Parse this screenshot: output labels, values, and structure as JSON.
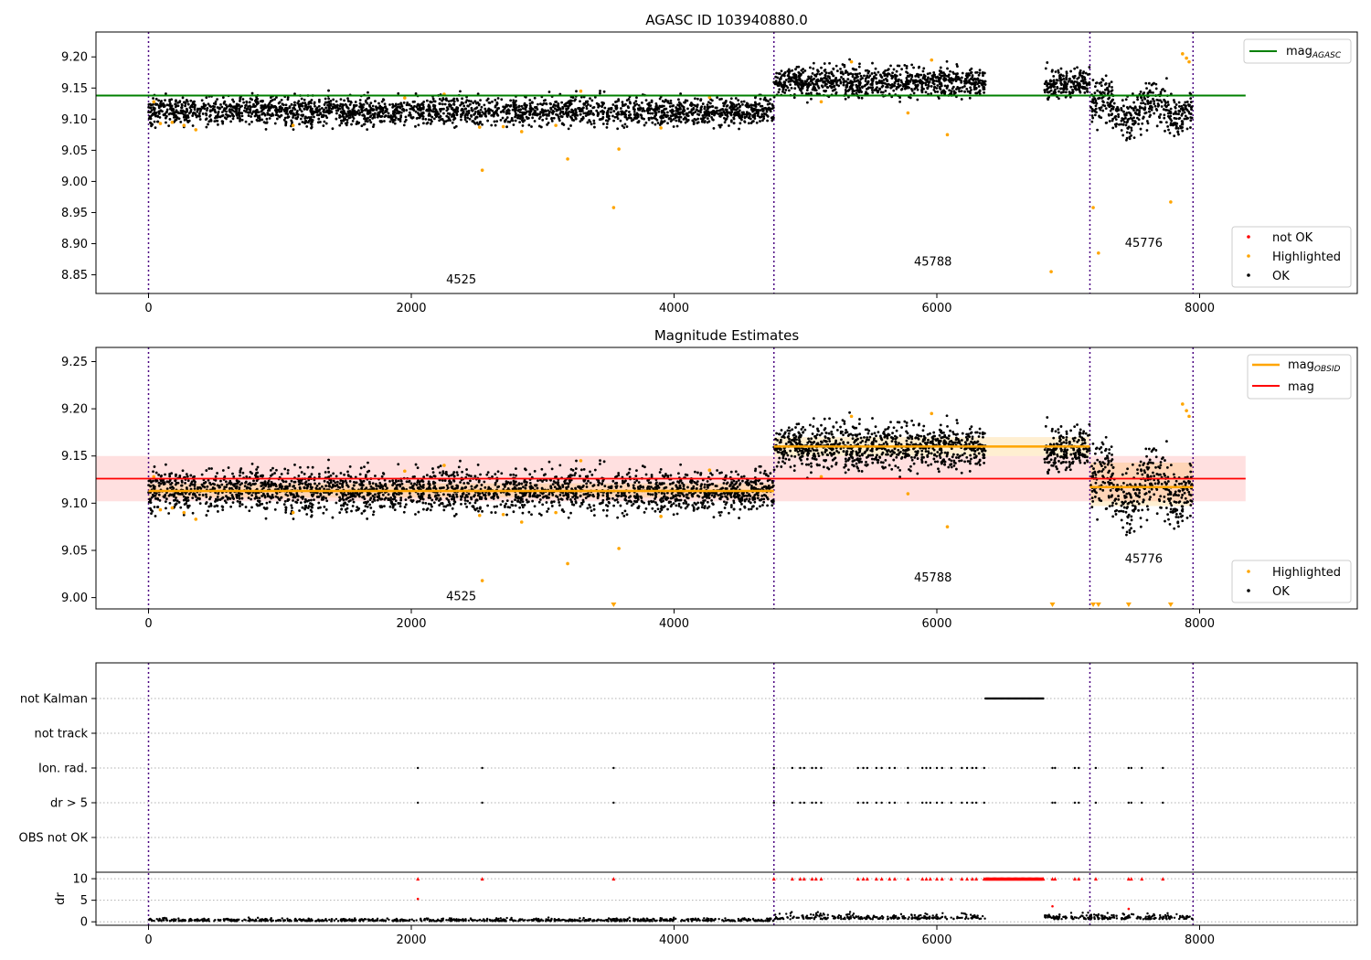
{
  "figure": {
    "title": "AGASC ID 103940880.0",
    "panel2_title": "Magnitude Estimates"
  },
  "chart_data": [
    {
      "type": "scatter",
      "title": "AGASC ID 103940880.0",
      "xlim": [
        -400,
        9200
      ],
      "ylim": [
        8.82,
        9.24
      ],
      "xticks": [
        0,
        2000,
        4000,
        6000,
        8000
      ],
      "yticks": [
        8.85,
        8.9,
        8.95,
        9.0,
        9.05,
        9.1,
        9.15,
        9.2
      ],
      "legend_upper": {
        "position": "top-right",
        "entries": [
          "mag_AGASC"
        ]
      },
      "legend_lower": {
        "position": "bottom-right",
        "entries": [
          "not OK",
          "Highlighted",
          "OK"
        ]
      },
      "mag_agasc": 9.138,
      "mag_agasc_xrange": [
        -400,
        8350
      ],
      "obs_boundaries": [
        0,
        4760,
        7165,
        7950
      ],
      "obs_labels": [
        {
          "text": "4525",
          "x": 2380,
          "y": 8.836
        },
        {
          "text": "45788",
          "x": 5970,
          "y": 8.865
        },
        {
          "text": "45776",
          "x": 7575,
          "y": 8.895
        }
      ],
      "ok_clusters": [
        {
          "x0": 0,
          "x1": 4760,
          "center": 9.113,
          "spread": 0.014,
          "n": 2400
        },
        {
          "x0": 4760,
          "x1": 6370,
          "center": 9.16,
          "spread": 0.015,
          "n": 900
        },
        {
          "x0": 6820,
          "x1": 7165,
          "center": 9.158,
          "spread": 0.014,
          "n": 200
        },
        {
          "x0": 7170,
          "x1": 7950,
          "center": 9.115,
          "spread": 0.022,
          "n": 420
        }
      ],
      "highlighted_points": [
        [
          40,
          9.128
        ],
        [
          90,
          9.093
        ],
        [
          180,
          9.095
        ],
        [
          270,
          9.09
        ],
        [
          360,
          9.083
        ],
        [
          1100,
          9.09
        ],
        [
          1950,
          9.134
        ],
        [
          2250,
          9.14
        ],
        [
          2520,
          9.087
        ],
        [
          2540,
          9.018
        ],
        [
          2700,
          9.088
        ],
        [
          2840,
          9.08
        ],
        [
          3100,
          9.09
        ],
        [
          3190,
          9.036
        ],
        [
          3290,
          9.145
        ],
        [
          3540,
          8.958
        ],
        [
          3580,
          9.052
        ],
        [
          3900,
          9.086
        ],
        [
          4270,
          9.135
        ],
        [
          5120,
          9.128
        ],
        [
          5350,
          9.192
        ],
        [
          5780,
          9.11
        ],
        [
          5960,
          9.195
        ],
        [
          6080,
          9.075
        ],
        [
          6870,
          8.855
        ],
        [
          7190,
          8.958
        ],
        [
          7230,
          8.885
        ],
        [
          7780,
          8.967
        ],
        [
          7870,
          9.205
        ],
        [
          7900,
          9.198
        ],
        [
          7920,
          9.192
        ]
      ]
    },
    {
      "type": "scatter",
      "title": "Magnitude Estimates",
      "xlim": [
        -400,
        9200
      ],
      "ylim": [
        8.988,
        9.265
      ],
      "xticks": [
        0,
        2000,
        4000,
        6000,
        8000
      ],
      "yticks": [
        9.0,
        9.05,
        9.1,
        9.15,
        9.2,
        9.25
      ],
      "legend_upper": {
        "position": "top-right",
        "entries": [
          "mag_OBSID",
          "mag"
        ]
      },
      "legend_lower": {
        "position": "bottom-right",
        "entries": [
          "Highlighted",
          "OK"
        ]
      },
      "mag": 9.126,
      "mag_band": [
        9.102,
        9.15
      ],
      "mag_xrange": [
        -400,
        8350
      ],
      "mag_obsid": [
        {
          "x0": 0,
          "x1": 4760,
          "value": 9.113,
          "band": [
            9.106,
            9.121
          ]
        },
        {
          "x0": 4760,
          "x1": 7165,
          "value": 9.16,
          "band": [
            9.15,
            9.17
          ]
        },
        {
          "x0": 7165,
          "x1": 7950,
          "value": 9.117,
          "band": [
            9.097,
            9.143
          ]
        }
      ],
      "obs_labels": [
        {
          "text": "4525",
          "x": 2380,
          "y": 8.997
        },
        {
          "text": "45788",
          "x": 5970,
          "y": 9.017
        },
        {
          "text": "45776",
          "x": 7575,
          "y": 9.037
        }
      ],
      "clipped_low_markers_x": [
        3540,
        6880,
        7190,
        7230,
        7460,
        7780
      ]
    },
    {
      "type": "scatter",
      "xlim": [
        -400,
        9200
      ],
      "xticks": [
        0,
        2000,
        4000,
        6000,
        8000
      ],
      "flag_rows": [
        "not Kalman",
        "not track",
        "Ion. rad.",
        "dr > 5",
        "OBS not OK"
      ],
      "not_kalman_range": [
        6370,
        6810
      ],
      "flag_x_ion_rad": [
        2050,
        2540,
        3540,
        4760,
        4900,
        4960,
        4990,
        5050,
        5080,
        5120,
        5400,
        5440,
        5470,
        5540,
        5580,
        5640,
        5680,
        5780,
        5890,
        5920,
        5950,
        6000,
        6040,
        6110,
        6190,
        6230,
        6270,
        6300,
        6360,
        6880,
        6900,
        7050,
        7080,
        7210,
        7460,
        7480,
        7560,
        7720
      ],
      "dr_ylabel": "dr",
      "dr_ylim": [
        -0.8,
        11.5
      ],
      "dr_yticks": [
        0,
        5,
        10
      ],
      "dr_clip_value": 10,
      "dr_outliers": [
        [
          2050,
          5.3
        ],
        [
          6880,
          3.6
        ],
        [
          7460,
          3.0
        ]
      ]
    }
  ],
  "colors": {
    "ok": "#000000",
    "not_ok": "#ff0000",
    "highlighted": "#ffa500",
    "mag_agasc_line": "#008000",
    "mag_line": "#ff0000",
    "mag_obsid_line": "#ffa500",
    "obs_boundary": "#4b0082"
  }
}
